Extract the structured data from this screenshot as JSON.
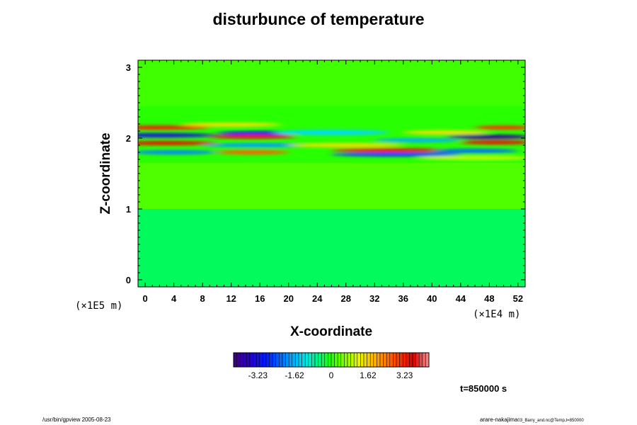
{
  "chart_data": {
    "type": "heatmap",
    "title": "disturbunce of temperature",
    "xlabel": "X-coordinate",
    "ylabel": "Z-coordinate",
    "x_scale_note": "(×1E4 m)",
    "z_scale_note": "(×1E5 m)",
    "xlim": [
      -1,
      53
    ],
    "ylim": [
      -0.1,
      3.1
    ],
    "x_ticks": [
      0,
      4,
      8,
      12,
      16,
      20,
      24,
      28,
      32,
      36,
      40,
      44,
      48,
      52
    ],
    "y_ticks": [
      0,
      1,
      2,
      3
    ],
    "colorbar": {
      "tick_labels": [
        "-3.23",
        "-1.62",
        "0",
        "1.62",
        "3.23"
      ],
      "tick_values": [
        -3.23,
        -1.62,
        0,
        1.62,
        3.23
      ],
      "range": [
        -4.3,
        4.3
      ]
    },
    "bands": [
      {
        "x_center": 2,
        "z": 2.15,
        "value": 3.2,
        "x_halfwidth": 7,
        "z_halfwidth": 0.03
      },
      {
        "x_center": 2,
        "z": 2.04,
        "value": -3.3,
        "x_halfwidth": 8,
        "z_halfwidth": 0.025
      },
      {
        "x_center": 3,
        "z": 1.93,
        "value": 3.4,
        "x_halfwidth": 7,
        "z_halfwidth": 0.03
      },
      {
        "x_center": 4,
        "z": 1.8,
        "value": -2.0,
        "x_halfwidth": 6,
        "z_halfwidth": 0.025
      },
      {
        "x_center": 12,
        "z": 2.19,
        "value": 1.4,
        "x_halfwidth": 7,
        "z_halfwidth": 0.03
      },
      {
        "x_center": 16,
        "z": 2.07,
        "value": -2.8,
        "x_halfwidth": 6,
        "z_halfwidth": 0.025
      },
      {
        "x_center": 15,
        "z": 2.02,
        "value": 3.4,
        "x_halfwidth": 6,
        "z_halfwidth": 0.025
      },
      {
        "x_center": 16,
        "z": 1.9,
        "value": -1.8,
        "x_halfwidth": 8,
        "z_halfwidth": 0.03
      },
      {
        "x_center": 15,
        "z": 1.8,
        "value": 2.6,
        "x_halfwidth": 5,
        "z_halfwidth": 0.02
      },
      {
        "x_center": 26,
        "z": 2.08,
        "value": -1.2,
        "x_halfwidth": 8,
        "z_halfwidth": 0.04
      },
      {
        "x_center": 28,
        "z": 1.9,
        "value": 1.4,
        "x_halfwidth": 8,
        "z_halfwidth": 0.03
      },
      {
        "x_center": 34,
        "z": 1.83,
        "value": 3.3,
        "x_halfwidth": 8,
        "z_halfwidth": 0.025
      },
      {
        "x_center": 35,
        "z": 1.77,
        "value": -2.6,
        "x_halfwidth": 9,
        "z_halfwidth": 0.025
      },
      {
        "x_center": 38,
        "z": 1.97,
        "value": -1.6,
        "x_halfwidth": 6,
        "z_halfwidth": 0.03
      },
      {
        "x_center": 42,
        "z": 2.08,
        "value": 1.4,
        "x_halfwidth": 6,
        "z_halfwidth": 0.03
      },
      {
        "x_center": 48,
        "z": 2.02,
        "value": -4.0,
        "x_halfwidth": 6,
        "z_halfwidth": 0.025
      },
      {
        "x_center": 49,
        "z": 1.94,
        "value": 3.4,
        "x_halfwidth": 5,
        "z_halfwidth": 0.025
      },
      {
        "x_center": 50,
        "z": 2.15,
        "value": 3.0,
        "x_halfwidth": 4,
        "z_halfwidth": 0.03
      },
      {
        "x_center": 46,
        "z": 1.82,
        "value": -2.2,
        "x_halfwidth": 6,
        "z_halfwidth": 0.025
      },
      {
        "x_center": 46,
        "z": 1.72,
        "value": 1.0,
        "x_halfwidth": 8,
        "z_halfwidth": 0.03
      }
    ],
    "background": [
      {
        "z_from": 2.45,
        "z_to": 3.1,
        "value": 0.15
      },
      {
        "z_from": 1.65,
        "z_to": 2.45,
        "value": 0.0
      },
      {
        "z_from": 1.0,
        "z_to": 1.65,
        "value": 0.25
      },
      {
        "z_from": -0.1,
        "z_to": 1.0,
        "value": -0.4
      }
    ]
  },
  "labels": {
    "time": "t=850000 s",
    "footer_left": "/usr/bin/gpview 2005-08-23",
    "footer_right_main": "arare-nakajima",
    "footer_right_small": "03_Barry_and.nc@Temp,t=850000"
  }
}
